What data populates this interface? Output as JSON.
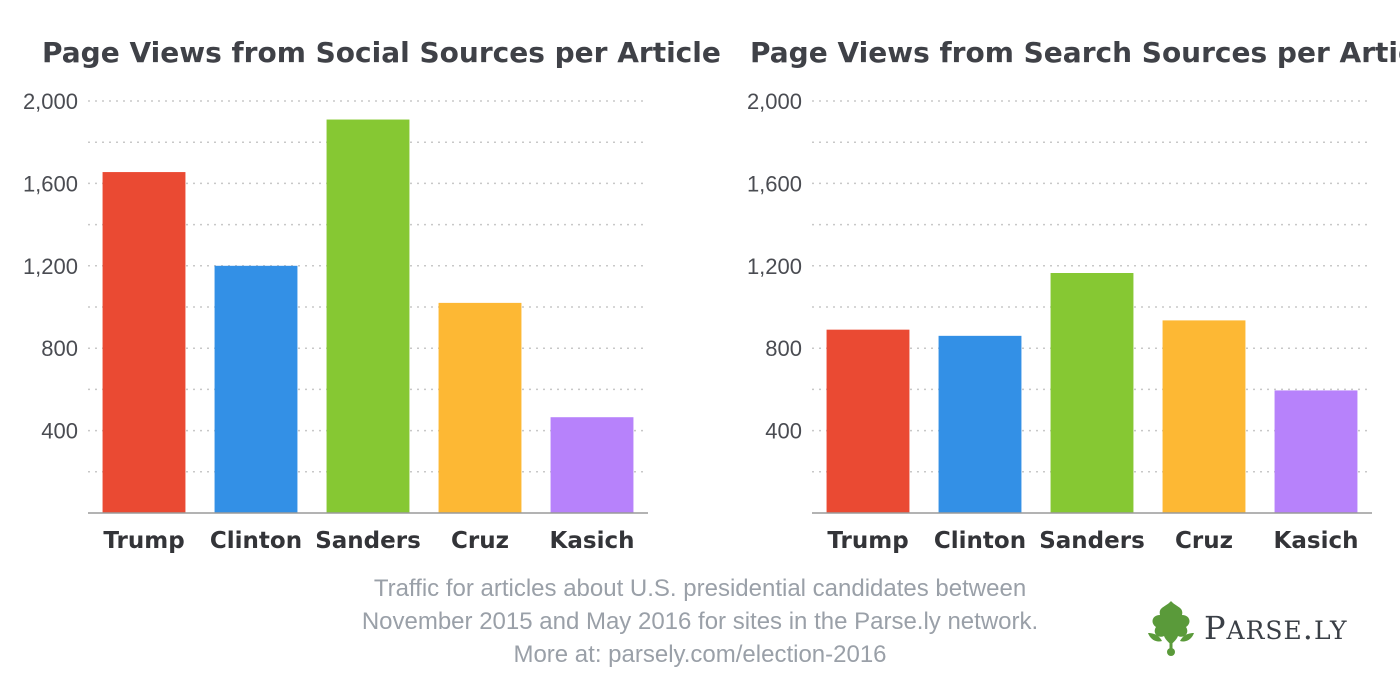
{
  "chart_data": [
    {
      "type": "bar",
      "title": "Page Views from Social Sources per Article",
      "categories": [
        "Trump",
        "Clinton",
        "Sanders",
        "Cruz",
        "Kasich"
      ],
      "values": [
        1655,
        1200,
        1910,
        1020,
        465
      ],
      "colors": [
        "#ea4a33",
        "#3390e6",
        "#86c833",
        "#fdb834",
        "#b782fb"
      ],
      "ylim": [
        0,
        2000
      ],
      "yticks": [
        400,
        800,
        1200,
        1600,
        2000
      ],
      "ytick_labels": [
        "400",
        "800",
        "1,200",
        "1,600",
        "2,000"
      ],
      "grid": true,
      "xlabel": "",
      "ylabel": ""
    },
    {
      "type": "bar",
      "title": "Page Views from Search Sources per Article",
      "categories": [
        "Trump",
        "Clinton",
        "Sanders",
        "Cruz",
        "Kasich"
      ],
      "values": [
        890,
        860,
        1165,
        935,
        595
      ],
      "colors": [
        "#ea4a33",
        "#3390e6",
        "#86c833",
        "#fdb834",
        "#b782fb"
      ],
      "ylim": [
        0,
        2000
      ],
      "yticks": [
        400,
        800,
        1200,
        1600,
        2000
      ],
      "ytick_labels": [
        "400",
        "800",
        "1,200",
        "1,600",
        "2,000"
      ],
      "grid": true,
      "xlabel": "",
      "ylabel": ""
    }
  ],
  "caption": {
    "line1": "Traffic for articles about U.S. presidential candidates between",
    "line2": "November 2015 and May 2016 for sites in the Parse.ly network.",
    "line3": "More at: parsely.com/election-2016"
  },
  "logo": {
    "text_big_1": "P",
    "text_small_1": "ARSE",
    "text_dot": ".",
    "text_small_2": "LY",
    "mark_color": "#5a9a3a",
    "icon": "parsley-leaf-icon"
  }
}
